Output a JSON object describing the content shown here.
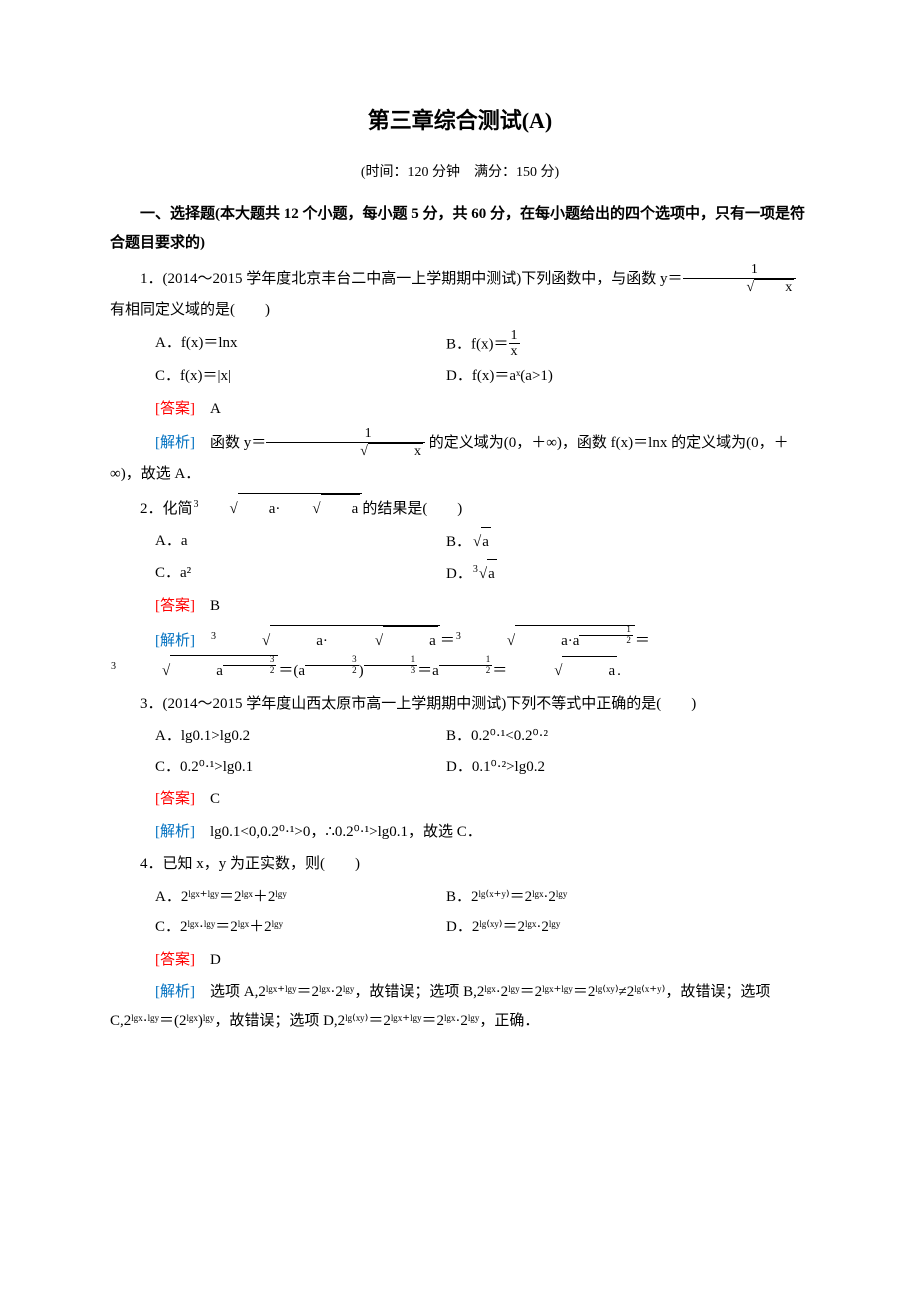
{
  "title": "第三章综合测试(A)",
  "subtitle": "(时间：120 分钟　满分：150 分)",
  "section1_intro": "一、选择题(本大题共 12 个小题，每小题 5 分，共 60 分，在每小题给出的四个选项中，只有一项是符合题目要求的)",
  "answer_label": "[答案]",
  "analysis_label": "[解析]",
  "q1": {
    "stem_a": "1．(2014～2015 学年度北京丰台二中高一上学期期中测试)下列函数中，与函数 ",
    "stem_b": " 有相同定义域的是(　　)",
    "y_eq": "y＝",
    "frac_num": "1",
    "frac_den_x": "x",
    "optA": "A．f(x)＝lnx",
    "optB_pre": "B．f(x)＝",
    "optB_num": "1",
    "optB_den": "x",
    "optC": "C．f(x)＝|x|",
    "optD": "D．f(x)＝aˣ(a>1)",
    "answer": "A",
    "analysis_a": "函数 ",
    "analysis_b": " 的定义域为(0，＋∞)，函数 f(x)＝lnx 的定义域为(0，＋∞)，故选 A．"
  },
  "q2": {
    "stem_a": "2．化简",
    "stem_b": "的结果是(　　)",
    "cubert_inner_a": "a·",
    "sqrt_a": "a",
    "optA": "A．a",
    "optB_pre": "B．",
    "optB_rad": "a",
    "optC": "C．a²",
    "optD_pre": "D．",
    "optD_rad": "a",
    "answer": "B",
    "analysis_eq_p1": "＝",
    "analysis_eq_p2": "＝",
    "analysis_eq_p3": "＝(a",
    "analysis_exp_32_num": "3",
    "analysis_exp_32_den": "2",
    "analysis_eq_p4": ")",
    "analysis_exp_13_num": "1",
    "analysis_exp_13_den": "3",
    "analysis_eq_p5": "＝a",
    "analysis_exp_12_num": "1",
    "analysis_exp_12_den": "2",
    "analysis_eq_p6": "＝",
    "analysis_eq_p7": "."
  },
  "q3": {
    "stem": "3．(2014～2015 学年度山西太原市高一上学期期中测试)下列不等式中正确的是(　　)",
    "optA": "A．lg0.1>lg0.2",
    "optB": "B．0.2⁰·¹<0.2⁰·²",
    "optC": "C．0.2⁰·¹>lg0.1",
    "optD": "D．0.1⁰·²>lg0.2",
    "answer": "C",
    "analysis": "lg0.1<0,0.2⁰·¹>0，∴0.2⁰·¹>lg0.1，故选 C．"
  },
  "q4": {
    "stem": "4．已知 x，y 为正实数，则(　　)",
    "optA": "A．2ˡᵍˣ⁺ˡᵍʸ＝2ˡᵍˣ＋2ˡᵍʸ",
    "optB": "B．2ˡᵍ⁽ˣ⁺ʸ⁾＝2ˡᵍˣ·2ˡᵍʸ",
    "optC": "C．2ˡᵍˣ·ˡᵍʸ＝2ˡᵍˣ＋2ˡᵍʸ",
    "optD": "D．2ˡᵍ⁽ˣʸ⁾＝2ˡᵍˣ·2ˡᵍʸ",
    "answer": "D",
    "analysis": "选项 A,2ˡᵍˣ⁺ˡᵍʸ＝2ˡᵍˣ·2ˡᵍʸ，故错误；选项 B,2ˡᵍˣ·2ˡᵍʸ＝2ˡᵍˣ⁺ˡᵍʸ＝2ˡᵍ⁽ˣʸ⁾≠2ˡᵍ⁽ˣ⁺ʸ⁾，故错误；选项 C,2ˡᵍˣ·ˡᵍʸ＝(2ˡᵍˣ)ˡᵍʸ，故错误；选项 D,2ˡᵍ⁽ˣʸ⁾＝2ˡᵍˣ⁺ˡᵍʸ＝2ˡᵍˣ·2ˡᵍʸ，正确．"
  }
}
